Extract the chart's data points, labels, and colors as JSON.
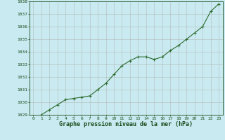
{
  "x": [
    0,
    1,
    2,
    3,
    4,
    5,
    6,
    7,
    8,
    9,
    10,
    11,
    12,
    13,
    14,
    15,
    16,
    17,
    18,
    19,
    20,
    21,
    22,
    23
  ],
  "y": [
    1028.7,
    1029.0,
    1029.4,
    1029.8,
    1030.2,
    1030.3,
    1030.4,
    1030.5,
    1031.0,
    1031.5,
    1032.2,
    1032.9,
    1033.3,
    1033.6,
    1033.6,
    1033.4,
    1033.6,
    1034.1,
    1034.5,
    1035.0,
    1035.5,
    1036.0,
    1037.2,
    1037.8
  ],
  "line_color": "#2d6a2d",
  "marker": "+",
  "marker_color": "#2d6a2d",
  "marker_size": 3,
  "marker_linewidth": 0.8,
  "line_width": 0.8,
  "background_color": "#c8eaf0",
  "grid_color": "#b0b0b0",
  "xlabel": "Graphe pression niveau de la mer (hPa)",
  "xlabel_color": "#1a4a1a",
  "tick_color": "#1a4a1a",
  "ylim": [
    1029,
    1038
  ],
  "xlim": [
    -0.5,
    23.5
  ],
  "yticks": [
    1029,
    1030,
    1031,
    1032,
    1033,
    1034,
    1035,
    1036,
    1037,
    1038
  ],
  "xticks": [
    0,
    1,
    2,
    3,
    4,
    5,
    6,
    7,
    8,
    9,
    10,
    11,
    12,
    13,
    14,
    15,
    16,
    17,
    18,
    19,
    20,
    21,
    22,
    23
  ],
  "tick_fontsize": 4.5,
  "xlabel_fontsize": 6.0
}
